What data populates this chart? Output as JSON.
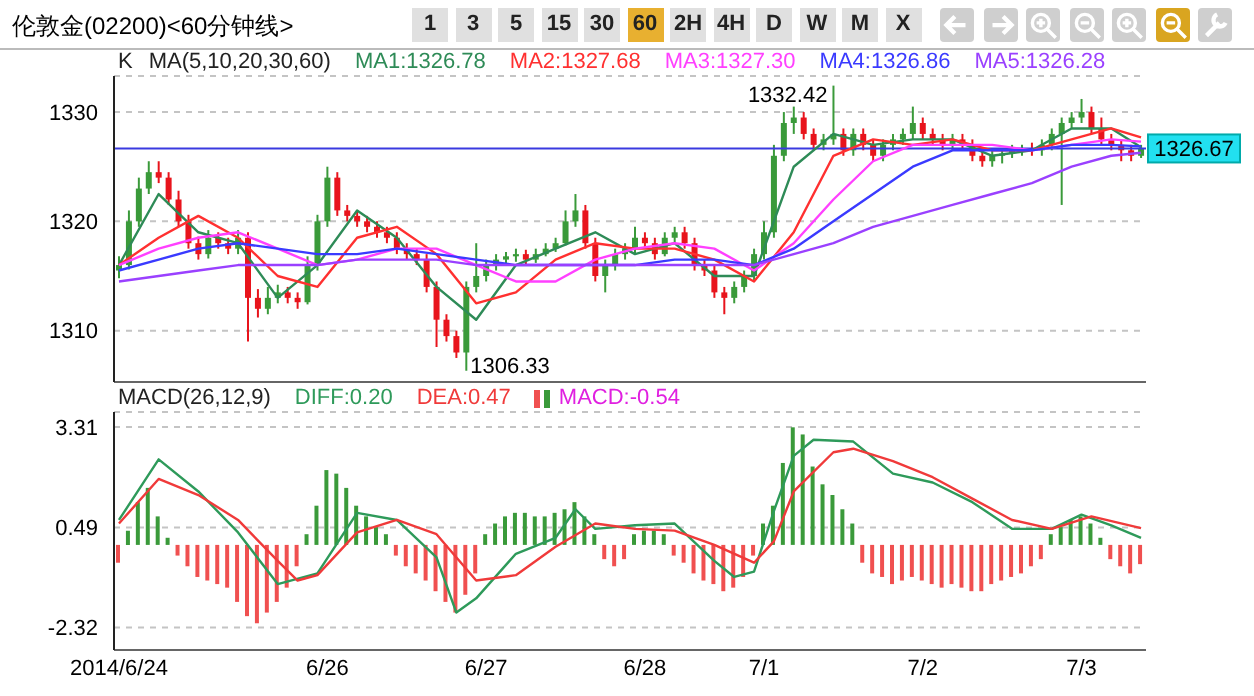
{
  "chart_data": [
    {
      "type": "other",
      "title": "伦敦金(02200)<60分钟线>",
      "annotations": [
        "1",
        "3",
        "5",
        "15",
        "30",
        "60",
        "2H",
        "4H",
        "D",
        "W",
        "M",
        "X"
      ]
    },
    {
      "type": "candlestick",
      "legend_title": "MA(5,10,20,30,60)",
      "annotations": [
        "K",
        "1332.42",
        "1306.33"
      ],
      "legend": "top",
      "grid": "y",
      "tick_labels": "y",
      "categories": [
        null,
        null,
        null,
        null,
        null,
        null,
        null,
        null,
        null,
        null,
        null,
        null,
        null,
        null,
        null,
        null,
        null,
        null,
        null,
        null,
        null,
        null,
        null,
        null,
        null,
        null,
        null,
        null,
        null,
        null,
        null,
        null,
        null,
        null,
        null,
        null,
        null,
        null,
        null,
        null,
        null,
        null,
        null,
        null,
        null,
        null,
        null,
        null,
        null,
        null,
        null,
        null,
        null,
        null,
        null,
        null,
        null,
        null,
        null,
        null,
        null,
        null,
        null,
        null,
        null,
        null,
        null,
        null,
        null,
        null,
        null,
        null,
        null,
        null,
        null,
        null,
        null,
        null,
        null,
        null,
        null,
        null,
        null,
        null,
        null,
        null,
        null,
        null,
        null,
        null,
        null,
        null,
        null,
        null,
        null,
        null,
        null,
        null,
        null,
        null,
        null,
        null,
        null,
        null
      ],
      "ohlc": [
        [
          1315.5,
          1316.8,
          1314.8,
          1316
        ],
        [
          1316,
          1321,
          1315.6,
          1320
        ],
        [
          1320,
          1324,
          1319.5,
          1323
        ],
        [
          1323,
          1325.5,
          1322.5,
          1324.5
        ],
        [
          1324.5,
          1325.5,
          1323.5,
          1324
        ],
        [
          1324,
          1324.5,
          1321.5,
          1322
        ],
        [
          1322,
          1322.8,
          1319.5,
          1320
        ],
        [
          1320,
          1320.6,
          1317.5,
          1318
        ],
        [
          1318,
          1318.6,
          1316.5,
          1317
        ],
        [
          1317,
          1319.2,
          1316.6,
          1318.5
        ],
        [
          1318.5,
          1319,
          1317.5,
          1318
        ],
        [
          1318,
          1318.5,
          1317,
          1317.5
        ],
        [
          1317.5,
          1319.2,
          1317,
          1318.5
        ],
        [
          1318.5,
          1319,
          1309,
          1313
        ],
        [
          1313,
          1313.8,
          1311.2,
          1312
        ],
        [
          1312,
          1314,
          1311.5,
          1313
        ],
        [
          1313,
          1314.2,
          1312.5,
          1313.5
        ],
        [
          1313.5,
          1314,
          1312.5,
          1313
        ],
        [
          1313,
          1313.5,
          1312,
          1312.6
        ],
        [
          1312.6,
          1316.8,
          1312.4,
          1316
        ],
        [
          1316,
          1320.6,
          1315.5,
          1320
        ],
        [
          1320,
          1325,
          1319.5,
          1324
        ],
        [
          1324,
          1324.5,
          1320.5,
          1321
        ],
        [
          1321,
          1321.5,
          1320,
          1320.5
        ],
        [
          1320.5,
          1321,
          1319.5,
          1320
        ],
        [
          1320,
          1320.5,
          1319,
          1319.5
        ],
        [
          1319.5,
          1320,
          1318.5,
          1319
        ],
        [
          1319,
          1319.5,
          1318,
          1318.5
        ],
        [
          1318.5,
          1319,
          1317,
          1317.5
        ],
        [
          1317.5,
          1318,
          1316.5,
          1317
        ],
        [
          1317,
          1317.5,
          1316,
          1316.5
        ],
        [
          1316.5,
          1317,
          1313.5,
          1314
        ],
        [
          1314,
          1314.5,
          1308.5,
          1311
        ],
        [
          1311,
          1311.5,
          1309,
          1309.5
        ],
        [
          1309.5,
          1310,
          1307.5,
          1308
        ],
        [
          1308,
          1314.5,
          1306.33,
          1314
        ],
        [
          1314,
          1318,
          1313.5,
          1315
        ],
        [
          1315,
          1316.5,
          1314.5,
          1316
        ],
        [
          1316,
          1317,
          1315.5,
          1316.5
        ],
        [
          1316.5,
          1317.2,
          1316,
          1316.8
        ],
        [
          1316.8,
          1317.5,
          1316.3,
          1317
        ],
        [
          1317,
          1317.4,
          1316,
          1316.5
        ],
        [
          1316.5,
          1317.5,
          1316.2,
          1317
        ],
        [
          1317,
          1318,
          1316.8,
          1317.5
        ],
        [
          1317.5,
          1318.5,
          1317.2,
          1318
        ],
        [
          1318,
          1321,
          1317.8,
          1320
        ],
        [
          1320,
          1322.5,
          1319.5,
          1321
        ],
        [
          1321,
          1321.5,
          1317.5,
          1318
        ],
        [
          1318,
          1318.5,
          1314.5,
          1315
        ],
        [
          1315,
          1316.5,
          1313.5,
          1316
        ],
        [
          1316,
          1317.5,
          1315.5,
          1317
        ],
        [
          1317,
          1318,
          1316.5,
          1317.5
        ],
        [
          1317.5,
          1319.5,
          1317,
          1318.5
        ],
        [
          1318.5,
          1319,
          1317.5,
          1318
        ],
        [
          1318,
          1318.5,
          1316.5,
          1317
        ],
        [
          1317,
          1319,
          1316.8,
          1318.5
        ],
        [
          1318.5,
          1319.5,
          1318,
          1319
        ],
        [
          1319,
          1319.5,
          1317.5,
          1318
        ],
        [
          1318,
          1318.5,
          1315.5,
          1316
        ],
        [
          1316,
          1316.5,
          1315,
          1315.5
        ],
        [
          1315.5,
          1316,
          1313,
          1313.5
        ],
        [
          1313.5,
          1314,
          1311.5,
          1313
        ],
        [
          1313,
          1314.5,
          1312.5,
          1314
        ],
        [
          1314,
          1315.5,
          1313.5,
          1315
        ],
        [
          1315,
          1317.5,
          1314.5,
          1317
        ],
        [
          1317,
          1320,
          1316.5,
          1319
        ],
        [
          1319,
          1327,
          1318.5,
          1326
        ],
        [
          1326,
          1330,
          1325.5,
          1329
        ],
        [
          1329,
          1330.5,
          1328,
          1329.5
        ],
        [
          1329.5,
          1330,
          1327.5,
          1328
        ],
        [
          1328,
          1328.5,
          1326.5,
          1327
        ],
        [
          1327,
          1328,
          1326.5,
          1327.5
        ],
        [
          1327.5,
          1332.42,
          1327,
          1328
        ],
        [
          1328,
          1328.5,
          1326,
          1326.5
        ],
        [
          1326.5,
          1328.5,
          1326,
          1328
        ],
        [
          1328,
          1328.5,
          1326.5,
          1327
        ],
        [
          1327,
          1327.5,
          1325.5,
          1326
        ],
        [
          1326,
          1327.5,
          1325.5,
          1327
        ],
        [
          1327,
          1328,
          1326.5,
          1327.5
        ],
        [
          1327.5,
          1328.5,
          1327,
          1328
        ],
        [
          1328,
          1330.5,
          1327.5,
          1329
        ],
        [
          1329,
          1329.5,
          1327.5,
          1328
        ],
        [
          1328,
          1328.5,
          1327,
          1327.5
        ],
        [
          1327.5,
          1328,
          1326.5,
          1327
        ],
        [
          1327,
          1328,
          1326.5,
          1327.5
        ],
        [
          1327.5,
          1328,
          1326.5,
          1327
        ],
        [
          1327,
          1327.5,
          1325.5,
          1326
        ],
        [
          1326,
          1326.5,
          1325,
          1325.5
        ],
        [
          1325.5,
          1326.5,
          1325,
          1326
        ],
        [
          1326,
          1326.5,
          1325.3,
          1326.2
        ],
        [
          1326.2,
          1327,
          1325.8,
          1326.5
        ],
        [
          1326.5,
          1327,
          1326,
          1326.7
        ],
        [
          1326.7,
          1327.2,
          1326,
          1326.5
        ],
        [
          1326.5,
          1327.5,
          1326,
          1327
        ],
        [
          1327,
          1328.5,
          1326.5,
          1328
        ],
        [
          1328,
          1329.5,
          1321.5,
          1329
        ],
        [
          1329,
          1330,
          1328.5,
          1329.5
        ],
        [
          1329.5,
          1331.2,
          1329,
          1330
        ],
        [
          1330,
          1330.5,
          1328,
          1328.5
        ],
        [
          1328.5,
          1329.5,
          1327,
          1327.5
        ],
        [
          1327.5,
          1328,
          1326.5,
          1327
        ],
        [
          1327,
          1327.5,
          1325.5,
          1326.5
        ],
        [
          1326.5,
          1327,
          1325.5,
          1326
        ],
        [
          1326,
          1327,
          1325.8,
          1326.67
        ]
      ],
      "colors": [
        "#3a9a3a",
        "#3a9a3a",
        "#3a9a3a",
        "#3a9a3a",
        "#e8141c",
        "#e8141c",
        "#e8141c",
        "#e8141c",
        "#e8141c",
        "#3a9a3a",
        "#e8141c",
        "#e8141c",
        "#3a9a3a",
        "#e8141c",
        "#e8141c",
        "#3a9a3a",
        "#3a9a3a",
        "#e8141c",
        "#e8141c",
        "#3a9a3a",
        "#3a9a3a",
        "#3a9a3a",
        "#e8141c",
        "#e8141c",
        "#e8141c",
        "#e8141c",
        "#e8141c",
        "#e8141c",
        "#e8141c",
        "#e8141c",
        "#e8141c",
        "#e8141c",
        "#e8141c",
        "#e8141c",
        "#e8141c",
        "#3a9a3a",
        "#3a9a3a",
        "#3a9a3a",
        "#3a9a3a",
        "#3a9a3a",
        "#3a9a3a",
        "#e8141c",
        "#3a9a3a",
        "#3a9a3a",
        "#3a9a3a",
        "#3a9a3a",
        "#3a9a3a",
        "#e8141c",
        "#e8141c",
        "#3a9a3a",
        "#3a9a3a",
        "#3a9a3a",
        "#3a9a3a",
        "#e8141c",
        "#e8141c",
        "#3a9a3a",
        "#3a9a3a",
        "#e8141c",
        "#e8141c",
        "#e8141c",
        "#e8141c",
        "#e8141c",
        "#3a9a3a",
        "#3a9a3a",
        "#3a9a3a",
        "#3a9a3a",
        "#3a9a3a",
        "#3a9a3a",
        "#3a9a3a",
        "#e8141c",
        "#e8141c",
        "#3a9a3a",
        "#3a9a3a",
        "#e8141c",
        "#3a9a3a",
        "#e8141c",
        "#e8141c",
        "#3a9a3a",
        "#3a9a3a",
        "#3a9a3a",
        "#3a9a3a",
        "#e8141c",
        "#e8141c",
        "#e8141c",
        "#3a9a3a",
        "#e8141c",
        "#e8141c",
        "#e8141c",
        "#3a9a3a",
        "#3a9a3a",
        "#3a9a3a",
        "#3a9a3a",
        "#e8141c",
        "#3a9a3a",
        "#3a9a3a",
        "#3a9a3a",
        "#3a9a3a",
        "#3a9a3a",
        "#e8141c",
        "#e8141c",
        "#e8141c",
        "#e8141c",
        "#e8141c",
        "#3a9a3a"
      ],
      "series": [
        {
          "type": "line",
          "name": "MA1:1326.78",
          "color": "#2e8b57",
          "values": [
            1316,
            null,
            null,
            null,
            1322.5,
            null,
            null,
            null,
            1319,
            null,
            null,
            null,
            1318,
            null,
            null,
            null,
            1313,
            null,
            null,
            null,
            1316,
            null,
            null,
            null,
            1321,
            null,
            null,
            null,
            1318.5,
            null,
            null,
            null,
            1314,
            null,
            null,
            null,
            1311,
            null,
            null,
            null,
            1316,
            null,
            null,
            null,
            1317.5,
            null,
            null,
            null,
            1319,
            null,
            null,
            null,
            1317,
            null,
            null,
            null,
            1318,
            null,
            null,
            null,
            1315,
            null,
            null,
            null,
            1315,
            null,
            null,
            null,
            1325,
            null,
            null,
            null,
            1328,
            null,
            null,
            null,
            1327,
            null,
            null,
            null,
            1327.5,
            null,
            null,
            null,
            1327.5,
            null,
            null,
            null,
            1326,
            null,
            null,
            null,
            1326.5,
            null,
            null,
            null,
            1328.5,
            null,
            null,
            null,
            1328.5,
            null,
            null,
            1326.78
          ]
        },
        {
          "type": "line",
          "name": "MA2:1327.68",
          "color": "#ff3030",
          "values": [
            1316,
            null,
            null,
            null,
            1318.5,
            null,
            null,
            null,
            1320.5,
            null,
            null,
            null,
            1318.5,
            null,
            null,
            null,
            1315,
            null,
            null,
            null,
            1314,
            null,
            null,
            null,
            1318.5,
            null,
            null,
            null,
            1319.5,
            null,
            null,
            null,
            1317,
            null,
            null,
            null,
            1312.5,
            null,
            null,
            null,
            1313.5,
            null,
            null,
            null,
            1316.5,
            null,
            null,
            null,
            1318,
            null,
            null,
            null,
            1317.5,
            null,
            null,
            null,
            1317.5,
            null,
            null,
            null,
            1316.5,
            null,
            null,
            null,
            1314.5,
            null,
            null,
            null,
            1319,
            null,
            null,
            null,
            1326,
            null,
            null,
            null,
            1327.5,
            null,
            null,
            null,
            1327,
            null,
            null,
            null,
            1327.5,
            null,
            null,
            null,
            1326.5,
            null,
            null,
            null,
            1326.5,
            null,
            null,
            null,
            1327.5,
            null,
            null,
            null,
            1328.5,
            null,
            null,
            1327.68
          ]
        },
        {
          "type": "line",
          "name": "MA3:1327.30",
          "color": "#ff40ff",
          "values": [
            1316,
            null,
            null,
            null,
            1317.5,
            null,
            null,
            null,
            1318.5,
            null,
            null,
            null,
            1319,
            null,
            null,
            null,
            1317.5,
            null,
            null,
            null,
            1316,
            null,
            null,
            null,
            1316.5,
            null,
            null,
            null,
            1317.5,
            null,
            null,
            null,
            1317.5,
            null,
            null,
            null,
            1316,
            null,
            null,
            null,
            1314.5,
            null,
            null,
            null,
            1314.5,
            null,
            null,
            null,
            1316.5,
            null,
            null,
            null,
            1317.5,
            null,
            null,
            null,
            1318,
            null,
            null,
            null,
            1317.5,
            null,
            null,
            null,
            1315.5,
            null,
            null,
            null,
            1318,
            null,
            null,
            null,
            1322,
            null,
            null,
            null,
            1325.5,
            null,
            null,
            null,
            1327,
            null,
            null,
            null,
            1327,
            null,
            null,
            null,
            1327,
            null,
            null,
            null,
            1326.5,
            null,
            null,
            null,
            1327,
            null,
            null,
            null,
            1327.5,
            null,
            null,
            1327.3
          ]
        },
        {
          "type": "line",
          "name": "MA4:1326.86",
          "color": "#3a3aff",
          "values": [
            1315.5,
            null,
            null,
            null,
            1316.5,
            null,
            null,
            null,
            1317.5,
            null,
            null,
            null,
            1318,
            null,
            null,
            null,
            1317.5,
            null,
            null,
            null,
            1317,
            null,
            null,
            null,
            1317,
            null,
            null,
            null,
            1317.5,
            null,
            null,
            null,
            1317,
            null,
            null,
            null,
            1316.5,
            null,
            null,
            null,
            1316,
            null,
            null,
            null,
            1316,
            null,
            null,
            null,
            1316,
            null,
            null,
            null,
            1316,
            null,
            null,
            null,
            1316.5,
            null,
            null,
            null,
            1316.5,
            null,
            null,
            null,
            1316,
            null,
            null,
            null,
            1317.5,
            null,
            null,
            null,
            1320,
            null,
            null,
            null,
            1322.5,
            null,
            null,
            null,
            1325,
            null,
            null,
            null,
            1326.5,
            null,
            null,
            null,
            1326.5,
            null,
            null,
            null,
            1326.5,
            null,
            null,
            null,
            1327,
            null,
            null,
            null,
            1327,
            null,
            null,
            1326.86
          ]
        },
        {
          "type": "line",
          "name": "MA5:1326.28",
          "color": "#9a40ff",
          "values": [
            1314.5,
            null,
            null,
            null,
            1315,
            null,
            null,
            null,
            1315.5,
            null,
            null,
            null,
            1316,
            null,
            null,
            null,
            1316,
            null,
            null,
            null,
            1316,
            null,
            null,
            null,
            1316.5,
            null,
            null,
            null,
            1316.5,
            null,
            null,
            null,
            1316.5,
            null,
            null,
            null,
            1316,
            null,
            null,
            null,
            1316,
            null,
            null,
            null,
            1316,
            null,
            null,
            null,
            1316,
            null,
            null,
            null,
            1316,
            null,
            null,
            null,
            1316,
            null,
            null,
            null,
            1316,
            null,
            null,
            null,
            1316,
            null,
            null,
            null,
            1317,
            null,
            null,
            null,
            1318,
            null,
            null,
            null,
            1319.5,
            null,
            null,
            null,
            1320.5,
            null,
            null,
            null,
            1321.5,
            null,
            null,
            null,
            1322.5,
            null,
            null,
            null,
            1323.5,
            null,
            null,
            null,
            1325,
            null,
            null,
            null,
            1326,
            null,
            null,
            1326.28
          ]
        }
      ],
      "ylim": [
        1305.3,
        1333.3
      ],
      "yticks": [
        1310,
        1320,
        1330
      ],
      "ref_lines": [
        {
          "axis": "y",
          "value": 1326.67,
          "label": "1326.67",
          "color": "#3a3ae0"
        }
      ]
    },
    {
      "type": "bar",
      "legend_title": "MACD(26,12,9)",
      "legend": "top left",
      "grid": "y",
      "categories": [
        "2014/6/24",
        null,
        null,
        null,
        null,
        null,
        null,
        null,
        null,
        null,
        null,
        null,
        null,
        null,
        null,
        null,
        null,
        null,
        null,
        null,
        null,
        "6/26",
        null,
        null,
        null,
        null,
        null,
        null,
        null,
        null,
        null,
        null,
        null,
        null,
        null,
        null,
        null,
        "6/27",
        null,
        null,
        null,
        null,
        null,
        null,
        null,
        null,
        null,
        null,
        null,
        null,
        null,
        null,
        null,
        "6/28",
        null,
        null,
        null,
        null,
        null,
        null,
        null,
        null,
        null,
        null,
        null,
        "7/1",
        null,
        null,
        null,
        null,
        null,
        null,
        null,
        null,
        null,
        null,
        null,
        null,
        null,
        null,
        null,
        "7/2",
        null,
        null,
        null,
        null,
        null,
        null,
        null,
        null,
        null,
        null,
        null,
        null,
        null,
        null,
        null,
        "7/3",
        null,
        null,
        null,
        null,
        null,
        null
      ],
      "series": [
        {
          "type": "line",
          "name": "DIFF:0.20",
          "color": "#2e9a5a",
          "values": [
            0.7,
            null,
            null,
            null,
            2.4,
            null,
            null,
            null,
            1.5,
            null,
            null,
            null,
            0.35,
            null,
            null,
            null,
            -1.1,
            null,
            null,
            null,
            -0.8,
            null,
            null,
            null,
            0.9,
            null,
            null,
            null,
            0.7,
            null,
            null,
            null,
            -0.35,
            null,
            -1.9,
            null,
            -1.5,
            null,
            null,
            null,
            -0.25,
            null,
            null,
            null,
            0.2,
            null,
            1.0,
            null,
            0.45,
            null,
            null,
            null,
            0.55,
            null,
            null,
            null,
            0.6,
            null,
            null,
            null,
            -0.45,
            null,
            -0.9,
            null,
            -0.75,
            null,
            0.95,
            null,
            2.5,
            null,
            2.95,
            null,
            null,
            null,
            2.9,
            null,
            null,
            null,
            2.0,
            null,
            null,
            null,
            1.75,
            null,
            null,
            null,
            1.2,
            null,
            null,
            null,
            0.45,
            null,
            null,
            null,
            0.45,
            null,
            null,
            0.85,
            null,
            null,
            0.55,
            null,
            null,
            0.2
          ]
        },
        {
          "type": "line",
          "name": "DEA:0.47",
          "color": "#f03a3a",
          "values": [
            0.6,
            null,
            null,
            null,
            1.85,
            null,
            null,
            null,
            1.4,
            null,
            null,
            null,
            0.7,
            null,
            null,
            null,
            -0.45,
            null,
            -1.0,
            null,
            -0.85,
            null,
            null,
            null,
            0.35,
            null,
            null,
            null,
            0.7,
            null,
            null,
            null,
            0.3,
            null,
            null,
            null,
            -1.0,
            null,
            null,
            null,
            -0.85,
            null,
            null,
            null,
            -0.05,
            null,
            null,
            null,
            0.6,
            null,
            null,
            null,
            0.45,
            null,
            null,
            null,
            0.4,
            null,
            null,
            null,
            0.0,
            null,
            null,
            null,
            -0.5,
            null,
            0.1,
            null,
            1.5,
            null,
            null,
            null,
            2.6,
            null,
            2.7,
            null,
            null,
            null,
            2.35,
            null,
            null,
            null,
            1.9,
            null,
            null,
            null,
            1.3,
            null,
            null,
            null,
            0.7,
            null,
            null,
            null,
            0.45,
            null,
            null,
            null,
            0.8,
            null,
            null,
            null,
            null,
            0.47
          ]
        },
        {
          "type": "bar",
          "name": "MACD:-0.54",
          "values": [
            -0.5,
            0.4,
            1.2,
            1.6,
            0.8,
            0.2,
            -0.3,
            -0.6,
            -0.9,
            -1.0,
            -1.1,
            -1.2,
            -1.6,
            -2.0,
            -2.2,
            -1.9,
            -1.6,
            -1.2,
            -0.6,
            0.3,
            1.1,
            2.1,
            2.0,
            1.6,
            1.1,
            0.8,
            0.5,
            0.3,
            -0.3,
            -0.6,
            -0.8,
            -1.0,
            -1.3,
            -1.6,
            -1.9,
            -1.4,
            -0.8,
            0.3,
            0.6,
            0.8,
            0.9,
            0.9,
            0.8,
            0.8,
            0.9,
            1.0,
            1.2,
            0.8,
            0.3,
            -0.4,
            -0.6,
            -0.4,
            0.3,
            0.4,
            0.4,
            0.3,
            -0.3,
            -0.5,
            -0.8,
            -1.0,
            -1.1,
            -1.3,
            -1.2,
            -0.9,
            -0.3,
            0.6,
            1.1,
            2.3,
            3.3,
            3.1,
            2.2,
            1.7,
            1.4,
            1.0,
            0.6,
            -0.5,
            -0.8,
            -0.9,
            -1.1,
            -1.0,
            -0.9,
            -1.0,
            -1.1,
            -1.2,
            -1.1,
            -1.2,
            -1.3,
            -1.3,
            -1.1,
            -1.0,
            -0.9,
            -0.8,
            -0.6,
            -0.4,
            0.3,
            0.5,
            0.7,
            0.8,
            0.6,
            0.2,
            -0.4,
            -0.6,
            -0.8,
            -0.54
          ],
          "colors": [
            "#f05050",
            "#3a9a3a",
            "#3a9a3a",
            "#3a9a3a",
            "#3a9a3a",
            "#3a9a3a",
            "#f05050",
            "#f05050",
            "#f05050",
            "#f05050",
            "#f05050",
            "#f05050",
            "#f05050",
            "#f05050",
            "#f05050",
            "#f05050",
            "#f05050",
            "#f05050",
            "#f05050",
            "#3a9a3a",
            "#3a9a3a",
            "#3a9a3a",
            "#3a9a3a",
            "#3a9a3a",
            "#3a9a3a",
            "#3a9a3a",
            "#3a9a3a",
            "#3a9a3a",
            "#f05050",
            "#f05050",
            "#f05050",
            "#f05050",
            "#f05050",
            "#f05050",
            "#f05050",
            "#f05050",
            "#f05050",
            "#3a9a3a",
            "#3a9a3a",
            "#3a9a3a",
            "#3a9a3a",
            "#3a9a3a",
            "#3a9a3a",
            "#3a9a3a",
            "#3a9a3a",
            "#3a9a3a",
            "#3a9a3a",
            "#3a9a3a",
            "#3a9a3a",
            "#f05050",
            "#f05050",
            "#f05050",
            "#3a9a3a",
            "#3a9a3a",
            "#3a9a3a",
            "#3a9a3a",
            "#f05050",
            "#f05050",
            "#f05050",
            "#f05050",
            "#f05050",
            "#f05050",
            "#f05050",
            "#f05050",
            "#f05050",
            "#3a9a3a",
            "#3a9a3a",
            "#3a9a3a",
            "#3a9a3a",
            "#3a9a3a",
            "#3a9a3a",
            "#3a9a3a",
            "#3a9a3a",
            "#3a9a3a",
            "#3a9a3a",
            "#f05050",
            "#f05050",
            "#f05050",
            "#f05050",
            "#f05050",
            "#f05050",
            "#f05050",
            "#f05050",
            "#f05050",
            "#f05050",
            "#f05050",
            "#f05050",
            "#f05050",
            "#f05050",
            "#f05050",
            "#f05050",
            "#f05050",
            "#f05050",
            "#f05050",
            "#3a9a3a",
            "#3a9a3a",
            "#3a9a3a",
            "#3a9a3a",
            "#3a9a3a",
            "#3a9a3a",
            "#f05050",
            "#f05050",
            "#f05050",
            "#f05050"
          ]
        }
      ],
      "ylim": [
        -2.95,
        3.73
      ],
      "yticks": [
        3.31,
        0.49,
        -2.32
      ]
    }
  ]
}
